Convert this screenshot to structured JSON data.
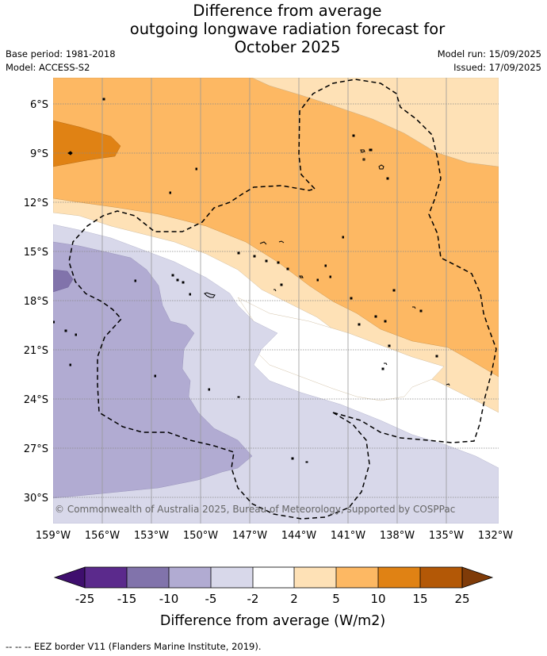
{
  "title": {
    "line1": "Difference from average",
    "line2": "outgoing longwave radiation forecast for",
    "line3": "October 2025"
  },
  "meta": {
    "base_period": "Base period: 1981-2018",
    "model": "Model: ACCESS-S2",
    "model_run": "Model run: 15/09/2025",
    "issued": "Issued: 17/09/2025"
  },
  "map": {
    "lat_labels": [
      "6°S",
      "9°S",
      "12°S",
      "15°S",
      "18°S",
      "21°S",
      "24°S",
      "27°S",
      "30°S"
    ],
    "lon_labels": [
      "159°W",
      "156°W",
      "153°W",
      "150°W",
      "147°W",
      "144°W",
      "141°W",
      "138°W",
      "135°W",
      "132°W"
    ],
    "copyright": "© Commonwealth of Australia 2025, Bureau of Meteorology, supported by COSPPac",
    "colors": {
      "neg25": "#3f0f6e",
      "neg20": "#5b2a8c",
      "neg15": "#8173ab",
      "neg10": "#b1abd2",
      "neg5": "#d8d8ea",
      "zero": "#ffffff",
      "pos2": "#fee1b6",
      "pos5": "#fdb863",
      "pos10": "#e08214",
      "pos15": "#b35806",
      "pos25": "#7f3b08"
    }
  },
  "colorbar": {
    "ticks": [
      "-25",
      "-15",
      "-10",
      "-5",
      "-2",
      "2",
      "5",
      "10",
      "15",
      "25"
    ],
    "label": "Difference from average (W/m2)"
  },
  "footer": "--  --  -- EEZ border V11 (Flanders Marine Institute, 2019)."
}
